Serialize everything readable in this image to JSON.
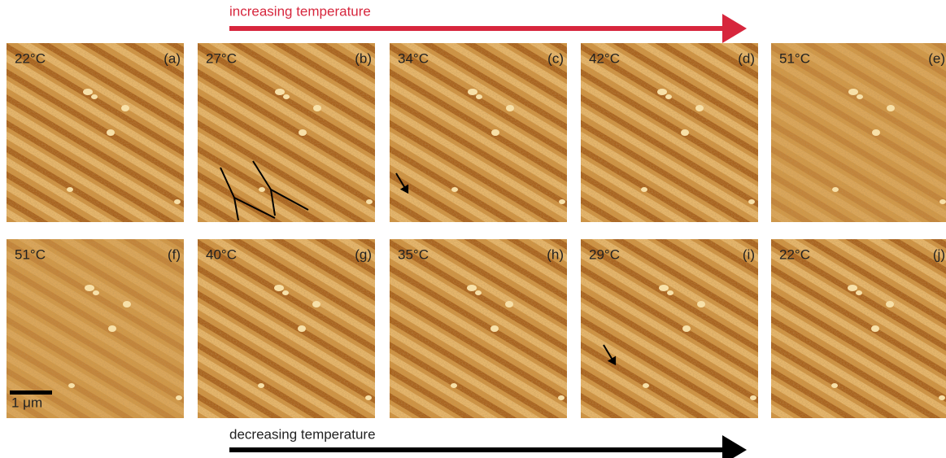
{
  "header": {
    "top": "increasing temperature",
    "bottom": "decreasing temperature"
  },
  "panels": [
    {
      "temperature": "22°C",
      "label": "(a)"
    },
    {
      "temperature": "27°C",
      "label": "(b)"
    },
    {
      "temperature": "34°C",
      "label": "(c)"
    },
    {
      "temperature": "42°C",
      "label": "(d)"
    },
    {
      "temperature": "51°C",
      "label": "(e)"
    },
    {
      "temperature": "51°C",
      "label": "(f)"
    },
    {
      "temperature": "40°C",
      "label": "(g)"
    },
    {
      "temperature": "35°C",
      "label": "(h)"
    },
    {
      "temperature": "29°C",
      "label": "(i)"
    },
    {
      "temperature": "22°C",
      "label": "(j)"
    }
  ],
  "scale_bar": "1 μm"
}
